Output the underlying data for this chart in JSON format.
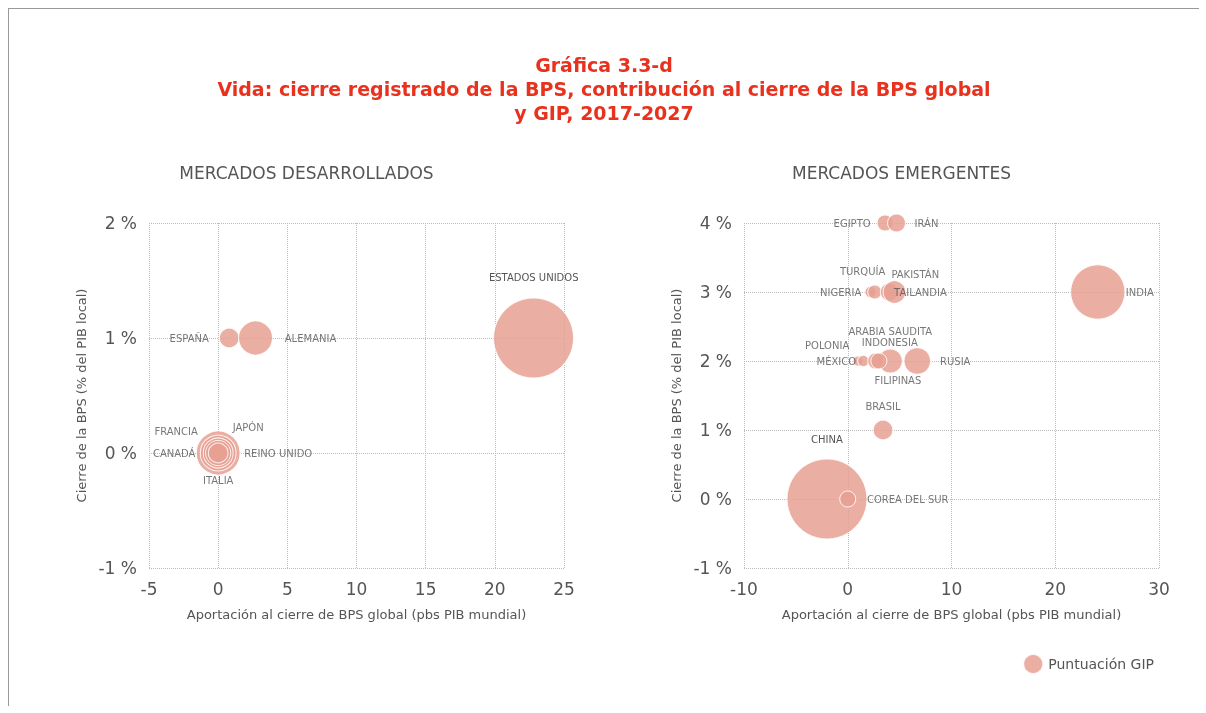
{
  "chart_data": [
    {
      "type": "bubble",
      "title": "Gráfica 3.3-d\nVida: cierre registrado de la BPS, contribución al cierre de la BPS global\ny GIP, 2017-2027",
      "subtitle": "MERCADOS DESARROLLADOS",
      "xlabel": "Aportación al cierre de BPS global (pbs PIB mundial)",
      "ylabel": "Cierre de la BPS (% del PIB local)",
      "xlim": [
        -5,
        25
      ],
      "xticks": [
        -5,
        0,
        5,
        10,
        15,
        20,
        25
      ],
      "ylim": [
        -1,
        2
      ],
      "yticks": [
        {
          "value": -1,
          "label": "-1 %"
        },
        {
          "value": 0,
          "label": "0 %"
        },
        {
          "value": 1,
          "label": "1 %"
        },
        {
          "value": 2,
          "label": "2 %"
        }
      ],
      "grid": true,
      "legend": false,
      "series": [
        {
          "color": "#e8a093",
          "x": [
            0.8,
            2.7,
            22.8,
            0,
            0,
            0,
            0,
            0
          ],
          "values": [
            1,
            1,
            1,
            0,
            0,
            0,
            0,
            0
          ],
          "sizes": [
            0.06,
            0.18,
            1,
            0.3,
            0.2,
            0.14,
            0.1,
            0.06
          ]
        }
      ],
      "annotations": [
        {
          "text": "ESPAÑA",
          "x": 0.8,
          "y": 1
        },
        {
          "text": "ALEMANIA",
          "x": 2.7,
          "y": 1
        },
        "ESTADOS UNIDOS",
        {
          "text": "JAPÓN",
          "x": 0,
          "y": 0
        },
        {
          "text": "REINO UNIDO",
          "x": 0,
          "y": 0
        },
        {
          "text": "FRANCIA",
          "x": 0,
          "y": 0
        },
        {
          "text": "CANADÁ",
          "x": 0,
          "y": 0
        },
        {
          "text": "ITALIA",
          "x": 0,
          "y": 0
        }
      ]
    },
    {
      "type": "bubble",
      "subtitle": "MERCADOS EMERGENTES",
      "xlabel": "Aportación al cierre de BPS global (pbs PIB mundial)",
      "ylabel": "Cierre de la BPS (% del PIB local)",
      "xlim": [
        -10,
        30
      ],
      "xticks": [
        -10,
        0,
        10,
        20,
        30
      ],
      "ylim": [
        -1,
        4
      ],
      "yticks": [
        {
          "value": -1,
          "label": "-1 %"
        },
        {
          "value": 0,
          "label": "0 %"
        },
        {
          "value": 1,
          "label": "1 %"
        },
        {
          "value": 2,
          "label": "2 %"
        },
        {
          "value": 3,
          "label": "3 %"
        },
        {
          "value": 4,
          "label": "4 %"
        }
      ],
      "grid": true,
      "legend": "bottom right",
      "series": [
        {
          "name": "Puntuación GIP",
          "color": "#e8a093",
          "x": [
            3.6,
            4.7,
            2.2,
            2.6,
            4.0,
            4.5,
            24.1,
            1.0,
            1.5,
            4.1,
            2.7,
            3.0,
            6.7,
            3.4,
            -2.0,
            0.0
          ],
          "values": [
            4,
            4,
            3,
            3,
            3,
            3,
            3,
            2,
            2,
            2,
            2,
            2,
            2,
            1,
            0,
            0
          ],
          "sizes": [
            0.04,
            0.05,
            0.02,
            0.03,
            0.05,
            0.08,
            0.46,
            0.016,
            0.02,
            0.09,
            0.04,
            0.04,
            0.11,
            0.06,
            1,
            0.04
          ]
        }
      ],
      "annotations": [
        {
          "text": "EGIPTO",
          "x": 3.6,
          "y": 4
        },
        {
          "text": "IRÁN",
          "x": 4.7,
          "y": 4
        },
        {
          "text": "TURQUÍA",
          "x": 2.2,
          "y": 3
        },
        {
          "text": "NIGERIA",
          "x": 2.6,
          "y": 3
        },
        {
          "text": "PAKISTÁN",
          "x": 4.0,
          "y": 3
        },
        {
          "text": "TAILANDIA",
          "x": 4.5,
          "y": 3
        },
        {
          "text": "INDIA",
          "x": 24.1,
          "y": 3
        },
        {
          "text": "POLONIA",
          "x": 1.0,
          "y": 2
        },
        {
          "text": "MÉXICO",
          "x": 1.5,
          "y": 2
        },
        {
          "text": "ARABIA SAUDITA",
          "x": 4.1,
          "y": 2
        },
        {
          "text": "INDONESIA",
          "x": 2.7,
          "y": 2
        },
        {
          "text": "FILIPINAS",
          "x": 3.0,
          "y": 2
        },
        {
          "text": "RUSIA",
          "x": 6.7,
          "y": 2
        },
        {
          "text": "BRASIL",
          "x": 3.4,
          "y": 1
        },
        "CHINA",
        {
          "text": "COREA DEL SUR",
          "x": 0.0,
          "y": 0
        }
      ]
    }
  ]
}
